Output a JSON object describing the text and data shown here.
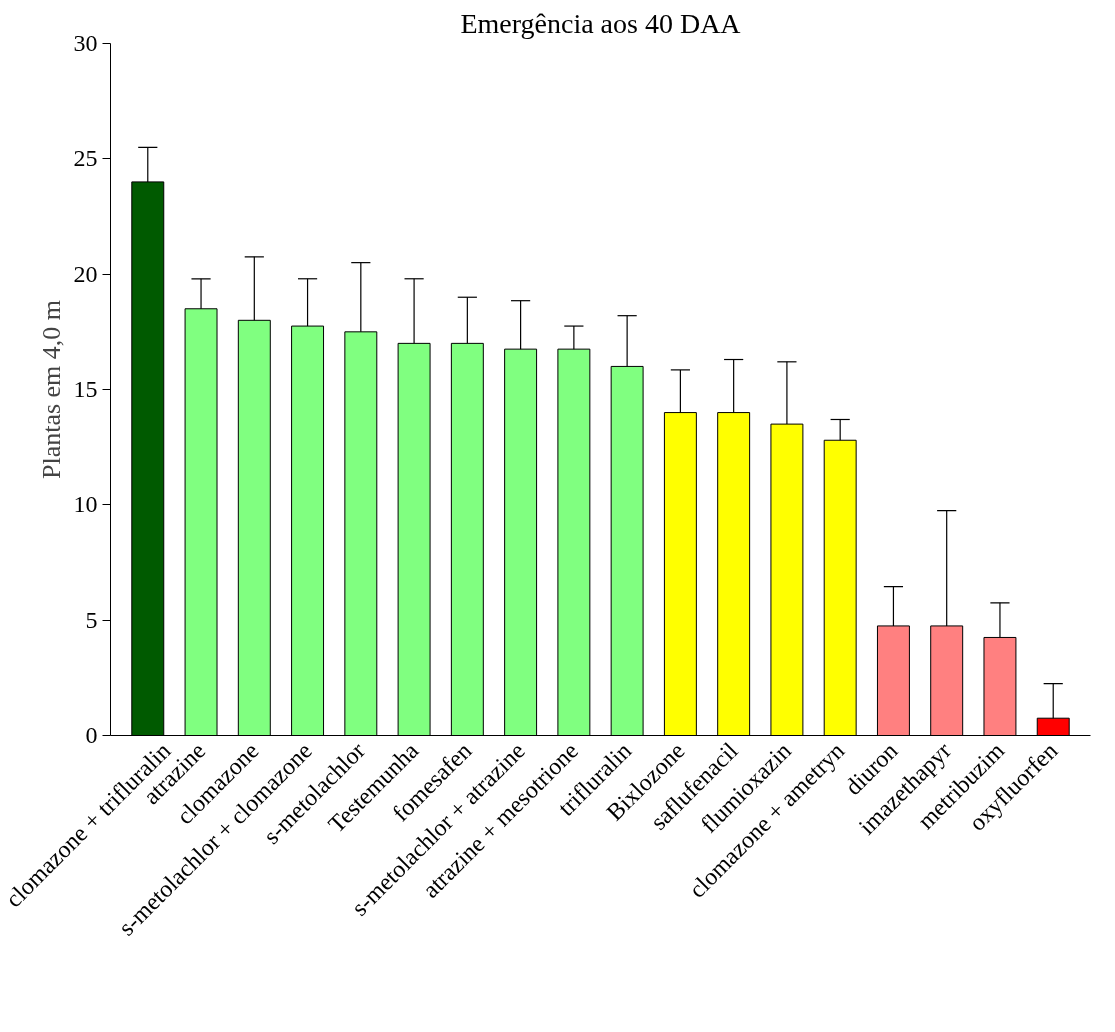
{
  "chart_data": {
    "type": "bar",
    "title": "Emergência aos 40 DAA",
    "ylabel": "Plantas em 4,0 m",
    "categories": [
      "clomazone + trifluralin",
      "atrazine",
      "clomazone",
      "s-metolachlor + clomazone",
      "s-metolachlor",
      "Testemunha",
      "fomesafen",
      "s-metolachlor + atrazine",
      "atrazine + mesotrione",
      "trifluralin",
      "Bixlozone",
      "saflufenacil",
      "flumioxazin",
      "clomazone + ametryn",
      "diuron",
      "imazethapyr",
      "metribuzim",
      "oxyfluorfen"
    ],
    "values": [
      24,
      18.5,
      18,
      17.75,
      17.5,
      17,
      17,
      16.75,
      16.75,
      16,
      14,
      14,
      13.5,
      12.8,
      4.75,
      4.75,
      4.25,
      0.75
    ],
    "errors": [
      [
        24,
        25.5
      ],
      [
        18.5,
        19.8
      ],
      [
        18,
        20.75
      ],
      [
        17.75,
        19.8
      ],
      [
        17.5,
        20.5
      ],
      [
        17,
        19.8
      ],
      [
        17,
        19
      ],
      [
        16.75,
        18.85
      ],
      [
        16.75,
        17.75
      ],
      [
        16,
        18.2
      ],
      [
        14,
        15.85
      ],
      [
        14,
        16.3
      ],
      [
        13.5,
        16.2
      ],
      [
        12.8,
        13.7
      ],
      [
        4.75,
        6.45
      ],
      [
        4.75,
        9.75
      ],
      [
        4.25,
        5.75
      ],
      [
        0.75,
        2.25
      ]
    ],
    "colors": [
      "#005a00",
      "#80ff80",
      "#80ff80",
      "#80ff80",
      "#80ff80",
      "#80ff80",
      "#80ff80",
      "#80ff80",
      "#80ff80",
      "#80ff80",
      "#ffff00",
      "#ffff00",
      "#ffff00",
      "#ffff00",
      "#ff8080",
      "#ff8080",
      "#ff8080",
      "#ff0000"
    ],
    "ylim": [
      0,
      30
    ],
    "yticks": [
      0,
      5,
      10,
      15,
      20,
      25,
      30
    ],
    "grid": false
  }
}
